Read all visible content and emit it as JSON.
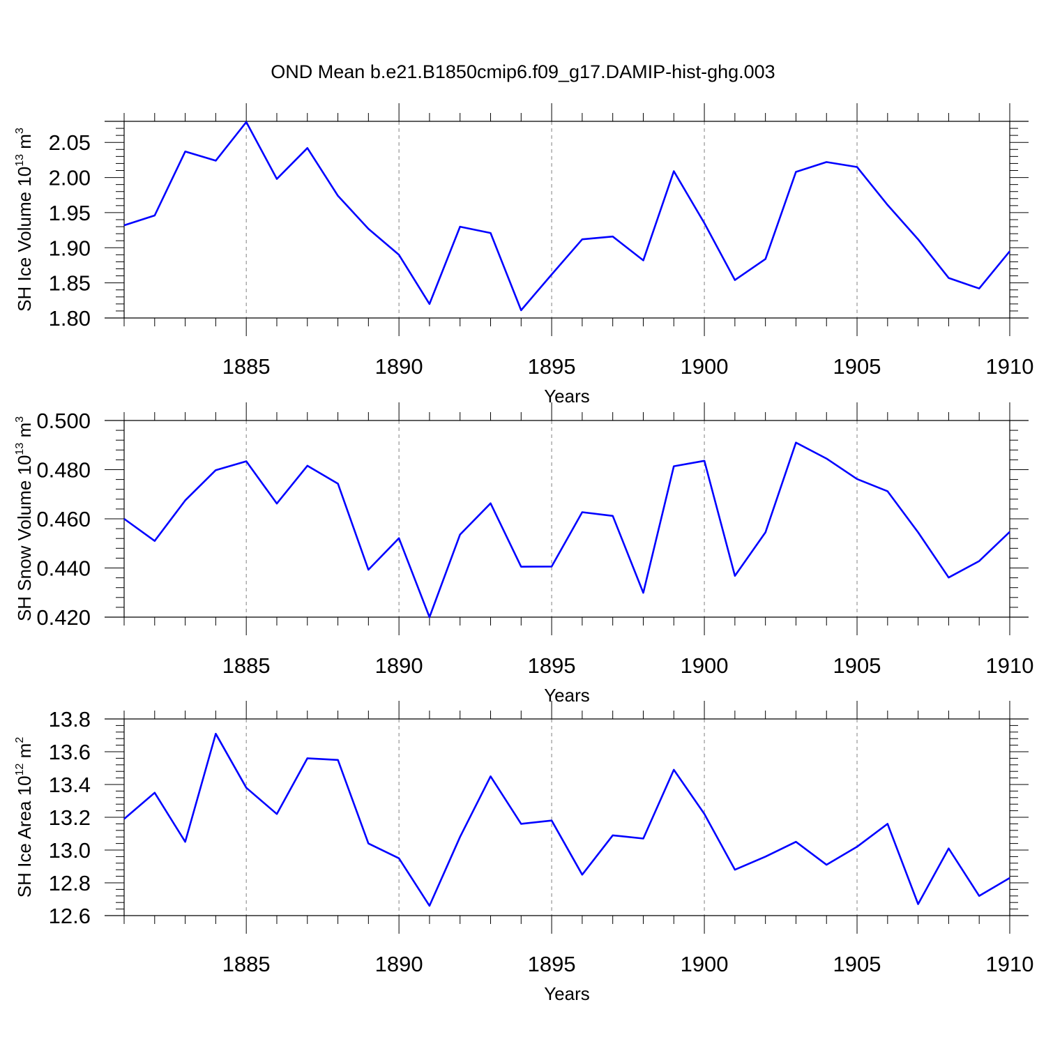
{
  "title": "OND Mean b.e21.B1850cmip6.f09_g17.DAMIP-hist-ghg.003",
  "colors": {
    "line": "#0000ff",
    "axis": "#000000",
    "grid": "#808080"
  },
  "chart_data": [
    {
      "type": "line",
      "ylabel": "SH Ice Volume 10",
      "ylabel_sup": "13",
      "ylabel_unit": " m",
      "ylabel_unit_sup": "3",
      "xlabel": "Years",
      "xlim": [
        1881,
        1910
      ],
      "ylim": [
        1.8,
        2.08
      ],
      "yticks": [
        1.8,
        1.85,
        1.9,
        1.95,
        2.0,
        2.05
      ],
      "ytick_labels": [
        "1.80",
        "1.85",
        "1.90",
        "1.95",
        "2.00",
        "2.05"
      ],
      "xticks": [
        1885,
        1890,
        1895,
        1900,
        1905,
        1910
      ],
      "xtick_labels": [
        "1885",
        "1890",
        "1895",
        "1900",
        "1905",
        "1910"
      ],
      "grid": "x-dashed",
      "x": [
        1881,
        1882,
        1883,
        1884,
        1885,
        1886,
        1887,
        1888,
        1889,
        1890,
        1891,
        1892,
        1893,
        1894,
        1895,
        1896,
        1897,
        1898,
        1899,
        1900,
        1901,
        1902,
        1903,
        1904,
        1905,
        1906,
        1907,
        1908,
        1909,
        1910
      ],
      "values": [
        1.932,
        1.946,
        2.037,
        2.024,
        2.079,
        1.998,
        2.042,
        1.974,
        1.927,
        1.89,
        1.82,
        1.93,
        1.921,
        1.811,
        1.862,
        1.912,
        1.916,
        1.882,
        2.009,
        1.935,
        1.854,
        1.884,
        2.008,
        2.022,
        2.015,
        1.961,
        1.912,
        1.857,
        1.842,
        1.895
      ]
    },
    {
      "type": "line",
      "ylabel": "SH Snow Volume 10",
      "ylabel_sup": "13",
      "ylabel_unit": " m",
      "ylabel_unit_sup": "3",
      "xlabel": "Years",
      "xlim": [
        1881,
        1910
      ],
      "ylim": [
        0.42,
        0.5
      ],
      "yticks": [
        0.42,
        0.44,
        0.46,
        0.48,
        0.5
      ],
      "ytick_labels": [
        "0.420",
        "0.440",
        "0.460",
        "0.480",
        "0.500"
      ],
      "xticks": [
        1885,
        1890,
        1895,
        1900,
        1905,
        1910
      ],
      "xtick_labels": [
        "1885",
        "1890",
        "1895",
        "1900",
        "1905",
        "1910"
      ],
      "grid": "x-dashed",
      "x": [
        1881,
        1882,
        1883,
        1884,
        1885,
        1886,
        1887,
        1888,
        1889,
        1890,
        1891,
        1892,
        1893,
        1894,
        1895,
        1896,
        1897,
        1898,
        1899,
        1900,
        1901,
        1902,
        1903,
        1904,
        1905,
        1906,
        1907,
        1908,
        1909,
        1910
      ],
      "values": [
        0.46,
        0.451,
        0.4675,
        0.4798,
        0.4834,
        0.4662,
        0.4816,
        0.4743,
        0.4393,
        0.4521,
        0.42,
        0.4536,
        0.4663,
        0.4405,
        0.4406,
        0.4627,
        0.4612,
        0.4299,
        0.4814,
        0.4836,
        0.4368,
        0.4545,
        0.491,
        0.4845,
        0.4762,
        0.4712,
        0.4545,
        0.4361,
        0.4428,
        0.4547
      ]
    },
    {
      "type": "line",
      "ylabel": "SH Ice Area 10",
      "ylabel_sup": "12",
      "ylabel_unit": " m",
      "ylabel_unit_sup": "2",
      "xlabel": "Years",
      "xlim": [
        1881,
        1910
      ],
      "ylim": [
        12.6,
        13.8
      ],
      "yticks": [
        12.6,
        12.8,
        13.0,
        13.2,
        13.4,
        13.6,
        13.8
      ],
      "ytick_labels": [
        "12.6",
        "12.8",
        "13.0",
        "13.2",
        "13.4",
        "13.6",
        "13.8"
      ],
      "xticks": [
        1885,
        1890,
        1895,
        1900,
        1905,
        1910
      ],
      "xtick_labels": [
        "1885",
        "1890",
        "1895",
        "1900",
        "1905",
        "1910"
      ],
      "grid": "x-dashed",
      "x": [
        1881,
        1882,
        1883,
        1884,
        1885,
        1886,
        1887,
        1888,
        1889,
        1890,
        1891,
        1892,
        1893,
        1894,
        1895,
        1896,
        1897,
        1898,
        1899,
        1900,
        1901,
        1902,
        1903,
        1904,
        1905,
        1906,
        1907,
        1908,
        1909,
        1910
      ],
      "values": [
        13.19,
        13.35,
        13.05,
        13.71,
        13.38,
        13.22,
        13.56,
        13.55,
        13.04,
        12.95,
        12.66,
        13.08,
        13.45,
        13.16,
        13.18,
        12.85,
        13.09,
        13.07,
        13.49,
        13.22,
        12.88,
        12.96,
        13.05,
        12.91,
        13.02,
        13.16,
        12.67,
        13.01,
        12.72,
        12.83
      ]
    }
  ]
}
